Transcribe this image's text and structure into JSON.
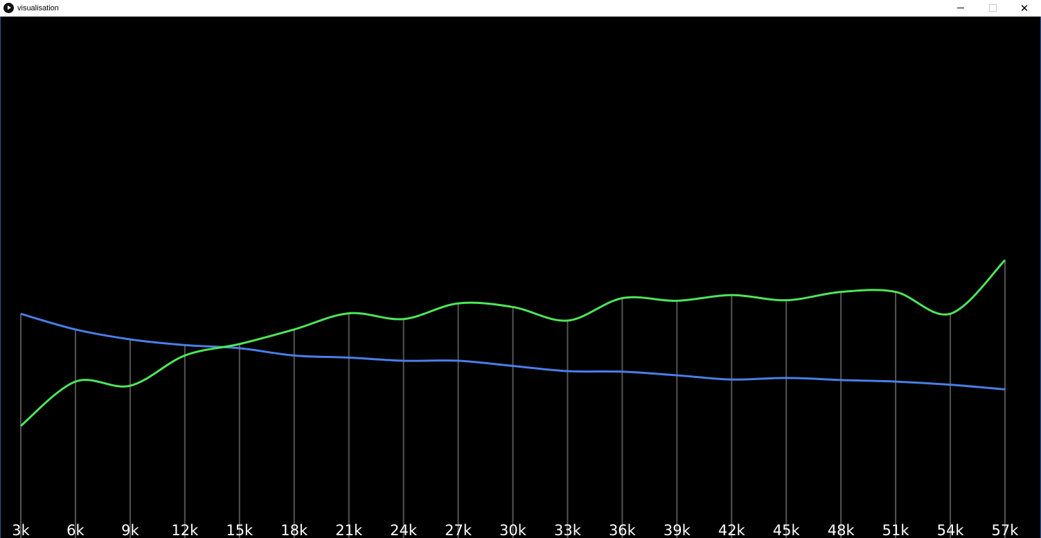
{
  "window": {
    "title": "visualisation",
    "app_icon": "play-icon",
    "controls": [
      "minimize-icon",
      "maximize-icon",
      "close-icon"
    ]
  },
  "chart_data": {
    "type": "line",
    "categories": [
      "3k",
      "6k",
      "9k",
      "12k",
      "15k",
      "18k",
      "21k",
      "24k",
      "27k",
      "30k",
      "33k",
      "36k",
      "39k",
      "42k",
      "45k",
      "48k",
      "51k",
      "54k",
      "57k"
    ],
    "series": [
      {
        "color": "#4a7fe8",
        "values": [
          43.0,
          40.0,
          38.1,
          37.0,
          36.4,
          35.0,
          34.6,
          34.0,
          34.0,
          33.0,
          32.0,
          31.9,
          31.2,
          30.4,
          30.7,
          30.3,
          30.0,
          29.4,
          28.5
        ]
      },
      {
        "color": "#4ee65a",
        "values": [
          21.5,
          30.0,
          29.2,
          35.0,
          37.2,
          40.0,
          43.1,
          42.0,
          45.0,
          44.3,
          41.7,
          46.0,
          45.5,
          46.6,
          45.6,
          47.2,
          47.2,
          43.0,
          53.3
        ]
      }
    ],
    "ylim": [
      0,
      100
    ],
    "grid": "vertical",
    "background": "#000000",
    "gridline_color": "#555555"
  }
}
